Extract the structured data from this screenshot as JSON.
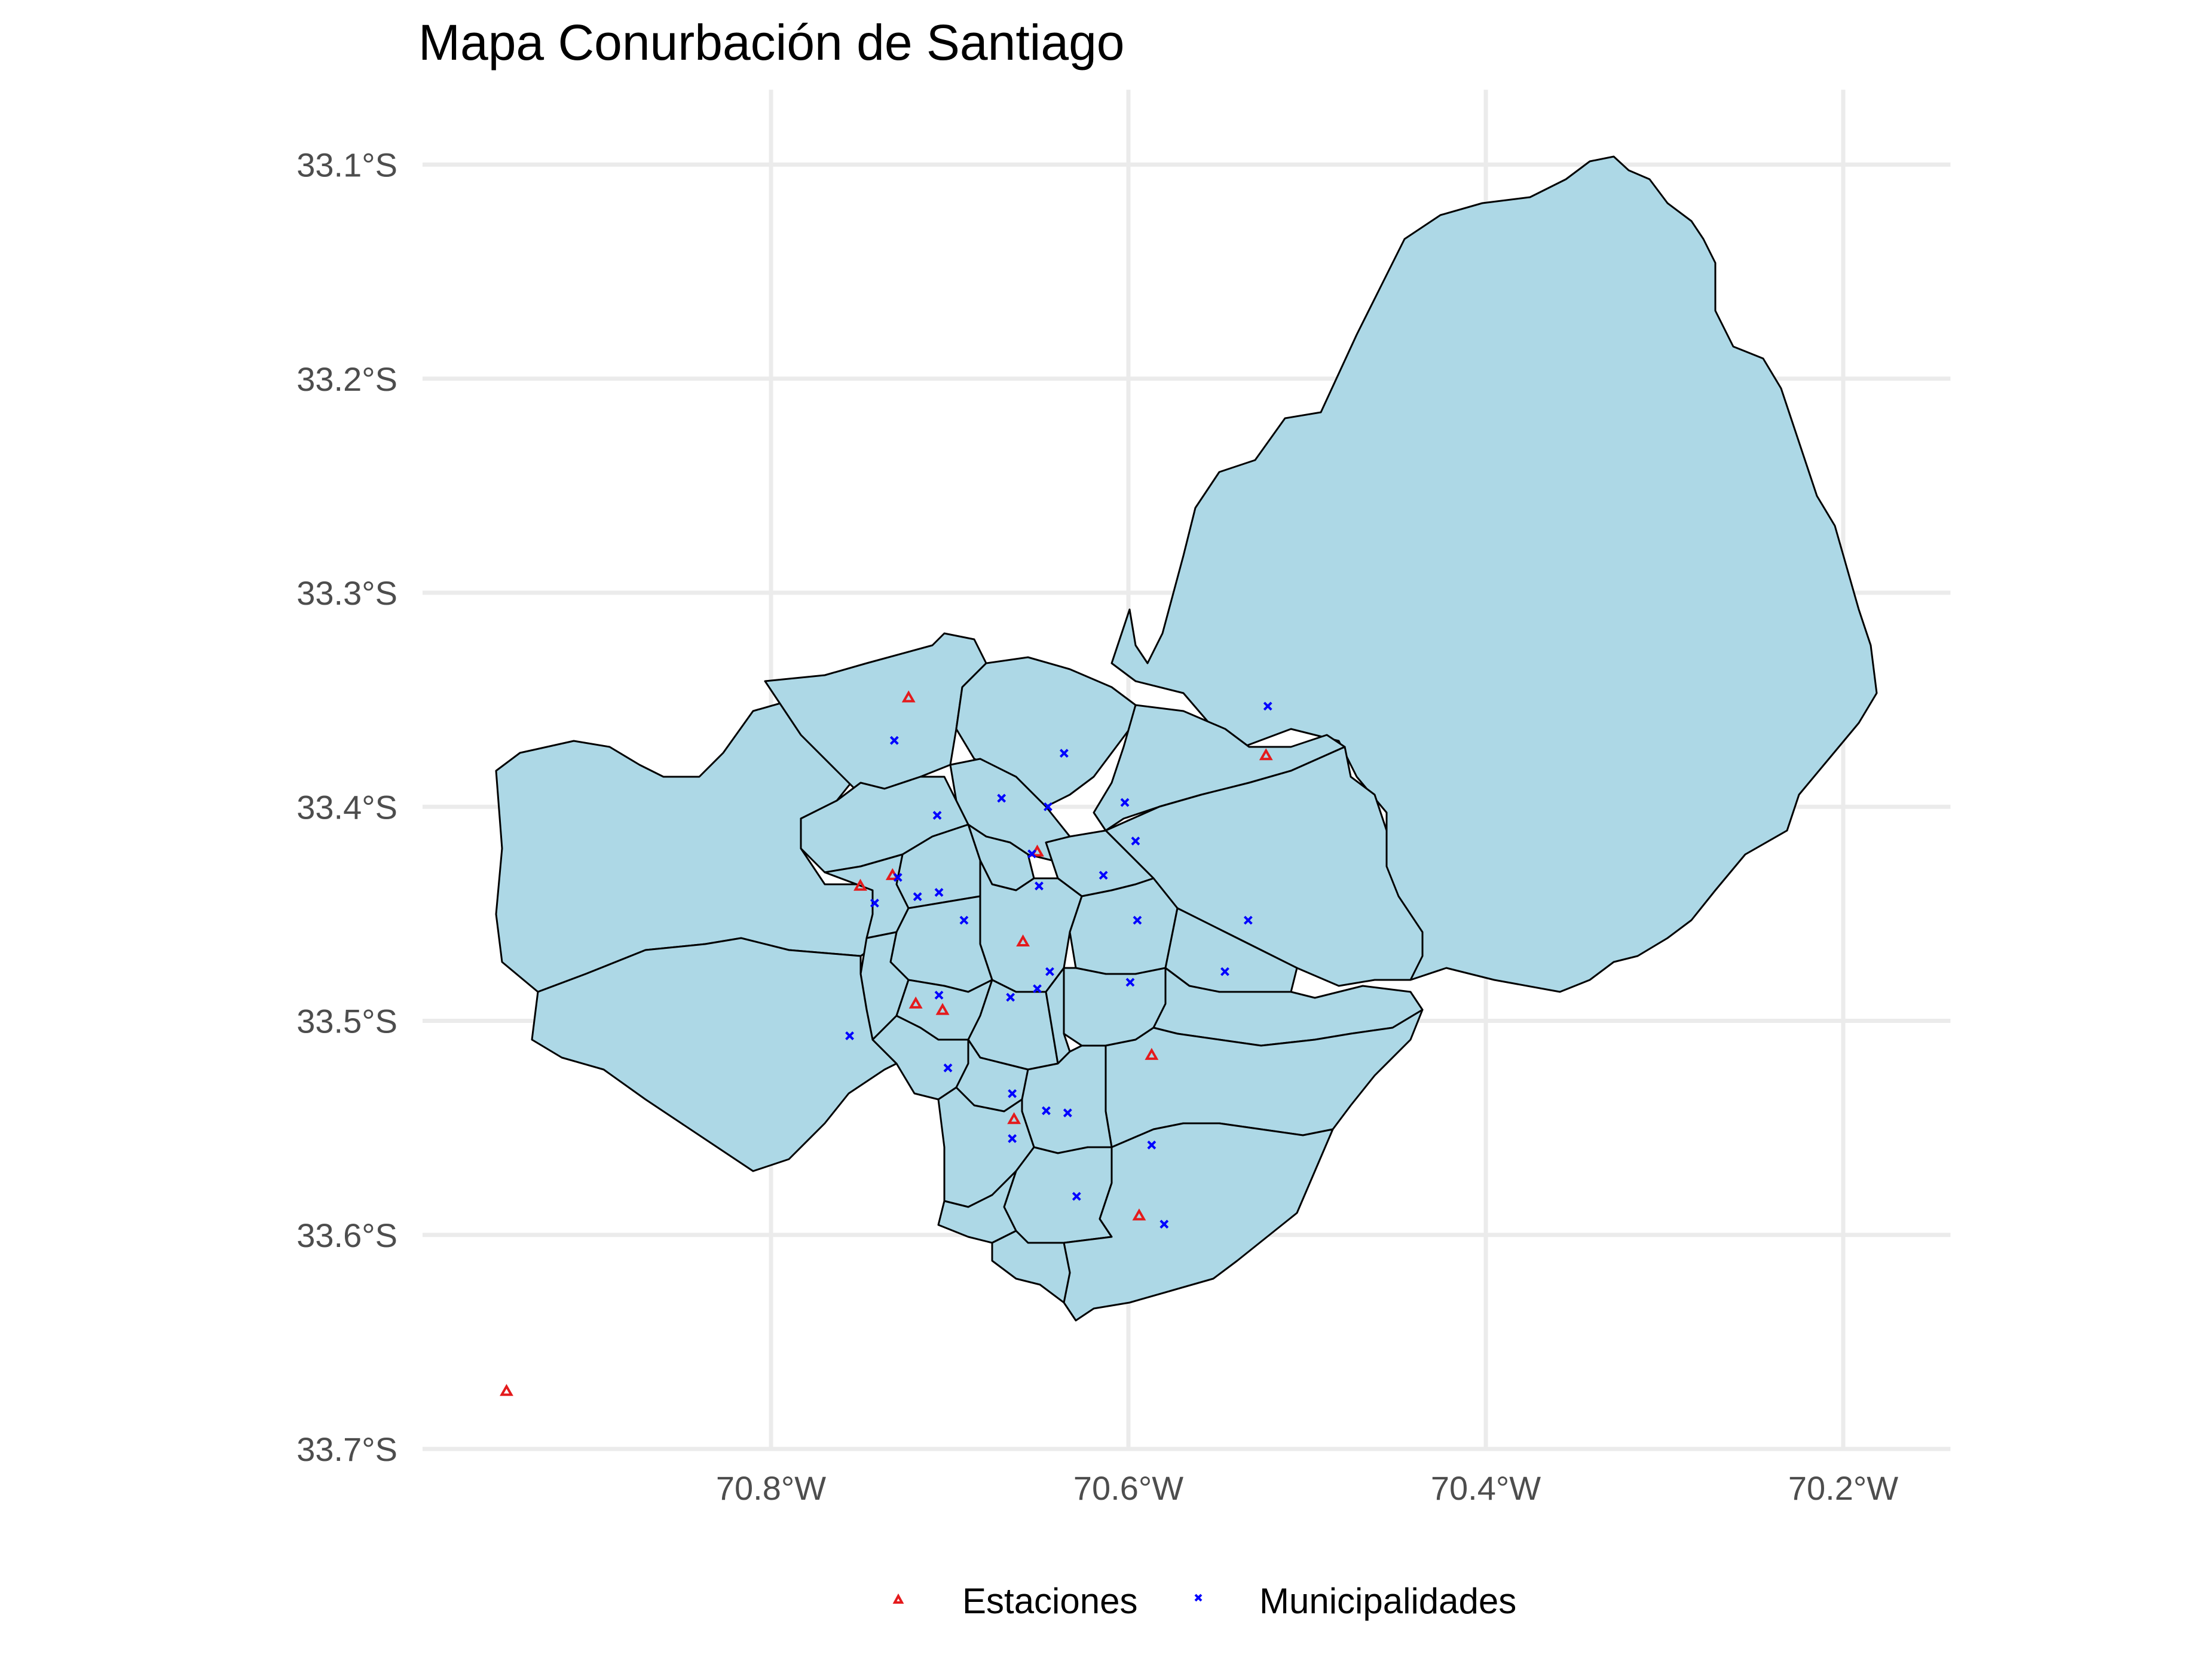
{
  "title": "Mapa Conurbación de Santiago",
  "colors": {
    "land": "#add8e6",
    "border": "#000000",
    "estaciones": "#e41a1c",
    "municipalidades": "#0000ff",
    "grid": "#ebebeb"
  },
  "axes": {
    "x_ticks": [
      {
        "value": -70.8,
        "label": "70.8°W"
      },
      {
        "value": -70.6,
        "label": "70.6°W"
      },
      {
        "value": -70.4,
        "label": "70.4°W"
      },
      {
        "value": -70.2,
        "label": "70.2°W"
      }
    ],
    "y_ticks": [
      {
        "value": -33.1,
        "label": "33.1°S"
      },
      {
        "value": -33.2,
        "label": "33.2°S"
      },
      {
        "value": -33.3,
        "label": "33.3°S"
      },
      {
        "value": -33.4,
        "label": "33.4°S"
      },
      {
        "value": -33.5,
        "label": "33.5°S"
      },
      {
        "value": -33.6,
        "label": "33.6°S"
      },
      {
        "value": -33.7,
        "label": "33.7°S"
      }
    ],
    "xlim": [
      -70.995,
      -70.14
    ],
    "ylim": [
      -33.7,
      -33.065
    ]
  },
  "legend": {
    "position": "bottom",
    "items": [
      {
        "label": "Estaciones",
        "symbol": "triangle-icon",
        "color": "#e41a1c"
      },
      {
        "label": "Municipalidades",
        "symbol": "cross-icon",
        "color": "#0000ff"
      }
    ]
  },
  "chart_data": {
    "type": "scatter",
    "title": "Mapa Conurbación de Santiago",
    "xlabel": "",
    "ylabel": "",
    "xlim": [
      -70.995,
      -70.14
    ],
    "ylim": [
      -33.7,
      -33.065
    ],
    "grid": true,
    "legend_placement": "bottom",
    "series": [
      {
        "name": "Estaciones",
        "marker": "triangle",
        "points": [
          [
            -70.723,
            -33.349
          ],
          [
            -70.651,
            -33.421
          ],
          [
            -70.732,
            -33.432
          ],
          [
            -70.75,
            -33.437
          ],
          [
            -70.659,
            -33.463
          ],
          [
            -70.719,
            -33.492
          ],
          [
            -70.704,
            -33.495
          ],
          [
            -70.587,
            -33.516
          ],
          [
            -70.664,
            -33.546
          ],
          [
            -70.594,
            -33.591
          ],
          [
            -70.523,
            -33.376
          ],
          [
            -70.948,
            -33.673
          ]
        ]
      },
      {
        "name": "Municipalidades",
        "marker": "cross",
        "points": [
          [
            -70.522,
            -33.353
          ],
          [
            -70.731,
            -33.369
          ],
          [
            -70.636,
            -33.375
          ],
          [
            -70.671,
            -33.396
          ],
          [
            -70.602,
            -33.398
          ],
          [
            -70.645,
            -33.4
          ],
          [
            -70.707,
            -33.404
          ],
          [
            -70.596,
            -33.416
          ],
          [
            -70.654,
            -33.422
          ],
          [
            -70.614,
            -33.432
          ],
          [
            -70.729,
            -33.433
          ],
          [
            -70.65,
            -33.437
          ],
          [
            -70.706,
            -33.44
          ],
          [
            -70.718,
            -33.442
          ],
          [
            -70.742,
            -33.445
          ],
          [
            -70.692,
            -33.453
          ],
          [
            -70.595,
            -33.453
          ],
          [
            -70.533,
            -33.453
          ],
          [
            -70.546,
            -33.477
          ],
          [
            -70.644,
            -33.477
          ],
          [
            -70.599,
            -33.482
          ],
          [
            -70.651,
            -33.485
          ],
          [
            -70.706,
            -33.488
          ],
          [
            -70.666,
            -33.489
          ],
          [
            -70.756,
            -33.507
          ],
          [
            -70.701,
            -33.522
          ],
          [
            -70.665,
            -33.534
          ],
          [
            -70.646,
            -33.542
          ],
          [
            -70.634,
            -33.543
          ],
          [
            -70.587,
            -33.558
          ],
          [
            -70.665,
            -33.555
          ],
          [
            -70.629,
            -33.582
          ],
          [
            -70.58,
            -33.595
          ]
        ]
      }
    ]
  }
}
